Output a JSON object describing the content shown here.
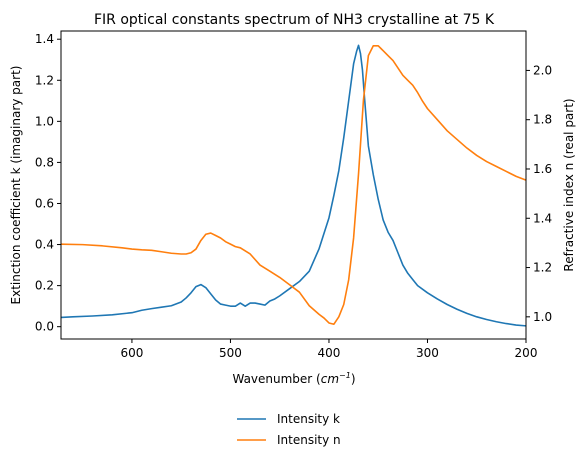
{
  "chart_data": {
    "type": "line",
    "title": "FIR optical constants spectrum of NH3 crystalline at 75 K",
    "xlabel_main": "Wavenumber (",
    "xlabel_unit_base": "cm",
    "xlabel_unit_exp": "−1",
    "xlabel_close": ")",
    "ylabel_left": "Extinction coefficient k (imaginary part)",
    "ylabel_right": "Refractive index n (real part)",
    "xlim": [
      672,
      200
    ],
    "x_inverted": true,
    "ylim_left": [
      -0.06,
      1.44
    ],
    "ylim_right": [
      0.91,
      2.16
    ],
    "x_ticks": [
      600,
      500,
      400,
      300,
      200
    ],
    "x_tick_labels": [
      "600",
      "500",
      "400",
      "300",
      "200"
    ],
    "y_left_ticks": [
      0.0,
      0.2,
      0.4,
      0.6,
      0.8,
      1.0,
      1.2,
      1.4
    ],
    "y_left_tick_labels": [
      "0.0",
      "0.2",
      "0.4",
      "0.6",
      "0.8",
      "1.0",
      "1.2",
      "1.4"
    ],
    "y_right_ticks": [
      1.0,
      1.2,
      1.4,
      1.6,
      1.8,
      2.0
    ],
    "y_right_tick_labels": [
      "1.0",
      "1.2",
      "1.4",
      "1.6",
      "1.8",
      "2.0"
    ],
    "grid": false,
    "legend_placement": "below",
    "series": [
      {
        "name": "Intensity k",
        "axis": "left",
        "color": "#1f77b4",
        "x": [
          672,
          660,
          640,
          620,
          600,
          590,
          580,
          570,
          560,
          550,
          545,
          540,
          535,
          530,
          525,
          520,
          515,
          510,
          505,
          500,
          495,
          490,
          485,
          480,
          475,
          470,
          465,
          460,
          455,
          450,
          440,
          430,
          420,
          410,
          400,
          395,
          390,
          385,
          380,
          375,
          372,
          370,
          368,
          366,
          364,
          362,
          360,
          355,
          350,
          345,
          340,
          335,
          330,
          325,
          320,
          315,
          310,
          300,
          290,
          280,
          270,
          260,
          250,
          240,
          230,
          220,
          210,
          200
        ],
        "y": [
          0.045,
          0.048,
          0.052,
          0.058,
          0.068,
          0.08,
          0.088,
          0.095,
          0.102,
          0.12,
          0.14,
          0.165,
          0.195,
          0.205,
          0.19,
          0.16,
          0.13,
          0.11,
          0.105,
          0.1,
          0.1,
          0.115,
          0.1,
          0.115,
          0.115,
          0.11,
          0.105,
          0.125,
          0.135,
          0.15,
          0.185,
          0.22,
          0.27,
          0.38,
          0.53,
          0.64,
          0.76,
          0.92,
          1.1,
          1.28,
          1.34,
          1.37,
          1.33,
          1.25,
          1.12,
          1.0,
          0.88,
          0.74,
          0.62,
          0.52,
          0.46,
          0.42,
          0.36,
          0.3,
          0.26,
          0.23,
          0.2,
          0.165,
          0.135,
          0.108,
          0.085,
          0.065,
          0.048,
          0.035,
          0.024,
          0.015,
          0.008,
          0.004
        ]
      },
      {
        "name": "Intensity n",
        "axis": "right",
        "color": "#ff7f0e",
        "x": [
          672,
          650,
          630,
          610,
          600,
          590,
          580,
          570,
          560,
          550,
          545,
          540,
          535,
          530,
          525,
          520,
          515,
          510,
          505,
          500,
          495,
          490,
          480,
          470,
          460,
          450,
          440,
          430,
          420,
          410,
          405,
          400,
          395,
          390,
          385,
          380,
          375,
          370,
          365,
          360,
          355,
          350,
          345,
          340,
          335,
          330,
          325,
          320,
          315,
          310,
          305,
          300,
          290,
          280,
          270,
          260,
          250,
          240,
          230,
          220,
          210,
          200
        ],
        "y": [
          1.295,
          1.293,
          1.288,
          1.28,
          1.275,
          1.272,
          1.27,
          1.264,
          1.258,
          1.255,
          1.255,
          1.26,
          1.275,
          1.31,
          1.335,
          1.34,
          1.33,
          1.32,
          1.305,
          1.295,
          1.285,
          1.28,
          1.255,
          1.21,
          1.185,
          1.16,
          1.13,
          1.1,
          1.045,
          1.01,
          0.995,
          0.975,
          0.97,
          1.0,
          1.05,
          1.15,
          1.32,
          1.58,
          1.88,
          2.06,
          2.1,
          2.1,
          2.08,
          2.06,
          2.04,
          2.01,
          1.98,
          1.96,
          1.94,
          1.91,
          1.875,
          1.845,
          1.8,
          1.755,
          1.72,
          1.685,
          1.655,
          1.63,
          1.61,
          1.59,
          1.57,
          1.555
        ]
      }
    ]
  }
}
